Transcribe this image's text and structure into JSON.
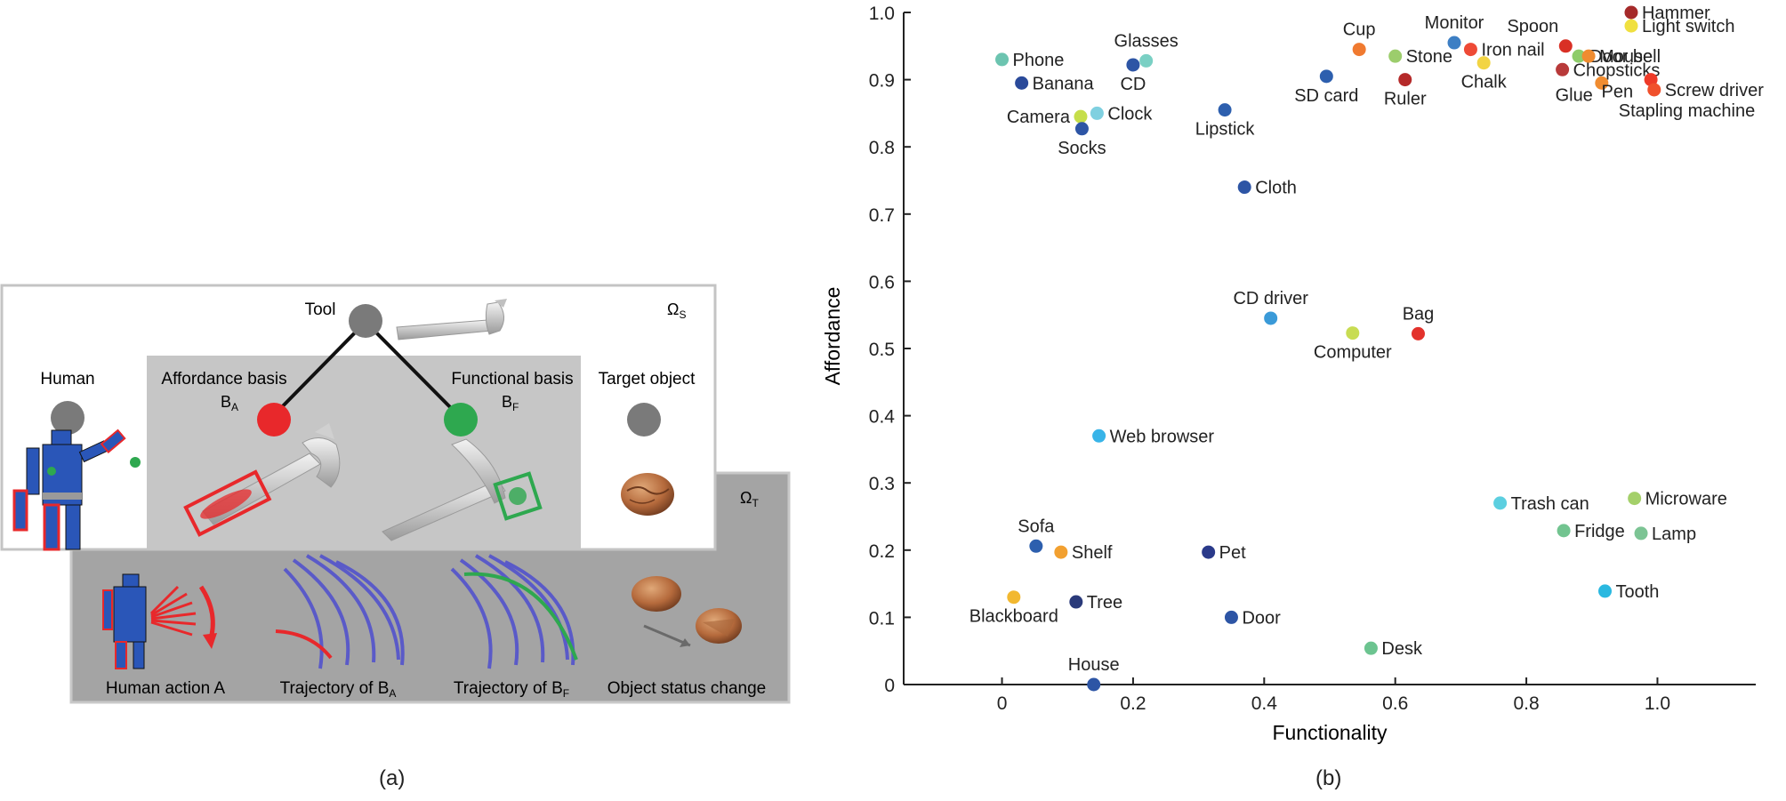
{
  "diagram": {
    "tool_label": "Tool",
    "omega_s": "Ω",
    "omega_s_sub": "S",
    "omega_t": "Ω",
    "omega_t_sub": "T",
    "human_label": "Human",
    "affordance_label": "Affordance basis",
    "ba_main": "B",
    "ba_sub": "A",
    "functional_label": "Functional basis",
    "bf_main": "B",
    "bf_sub": "F",
    "target_label": "Target object",
    "bottom_labels": {
      "human_action": "Human action A",
      "traj_a_main": "Trajectory of B",
      "traj_a_sub": "A",
      "traj_f_main": "Trajectory of B",
      "traj_f_sub": "F",
      "status": "Object status change"
    },
    "colors": {
      "affordance": "#e8282b",
      "functional": "#2ea84f",
      "node": "#7a7a7a"
    }
  },
  "captions": {
    "a": "(a)",
    "b": "(b)"
  },
  "chart_data": {
    "type": "scatter",
    "title": "",
    "xlabel": "Functionality",
    "ylabel": "Affordance",
    "xlim": [
      -0.15,
      1.15
    ],
    "ylim": [
      0,
      1.0
    ],
    "xticks": [
      "0",
      "0.2",
      "0.4",
      "0.6",
      "0.8",
      "1.0"
    ],
    "yticks": [
      "0",
      "0.1",
      "0.2",
      "0.3",
      "0.4",
      "0.5",
      "0.6",
      "0.7",
      "0.8",
      "0.9",
      "1.0"
    ],
    "grid": false,
    "points": [
      {
        "label": "Hammer",
        "x": 0.96,
        "y": 1.0,
        "color": "#a52a2a",
        "anchor": "right"
      },
      {
        "label": "Light switch",
        "x": 0.96,
        "y": 0.98,
        "color": "#f0e040",
        "anchor": "right"
      },
      {
        "label": "Monitor",
        "x": 0.69,
        "y": 0.955,
        "color": "#3d7fc4",
        "anchor": "above"
      },
      {
        "label": "Spoon",
        "x": 0.86,
        "y": 0.95,
        "color": "#d93025",
        "anchor": "aboveleft"
      },
      {
        "label": "Door bell",
        "x": 0.88,
        "y": 0.935,
        "color": "#8ecc6a",
        "anchor": "right"
      },
      {
        "label": "Mouse",
        "x": 0.895,
        "y": 0.935,
        "color": "#f08c30",
        "anchor": "right"
      },
      {
        "label": "Cup",
        "x": 0.545,
        "y": 0.945,
        "color": "#f07a30",
        "anchor": "above"
      },
      {
        "label": "Iron nail",
        "x": 0.715,
        "y": 0.945,
        "color": "#ee4a36",
        "anchor": "right"
      },
      {
        "label": "Stone",
        "x": 0.6,
        "y": 0.935,
        "color": "#9ccd6c",
        "anchor": "right"
      },
      {
        "label": "Chalk",
        "x": 0.735,
        "y": 0.925,
        "color": "#f2d444",
        "anchor": "below"
      },
      {
        "label": "Chopsticks",
        "x": 0.855,
        "y": 0.915,
        "color": "#b83a3a",
        "anchor": "right"
      },
      {
        "label": "SD card",
        "x": 0.495,
        "y": 0.905,
        "color": "#2d5fae",
        "anchor": "below"
      },
      {
        "label": "Ruler",
        "x": 0.615,
        "y": 0.9,
        "color": "#b52a2a",
        "anchor": "below"
      },
      {
        "label": "Glue",
        "x": 0.915,
        "y": 0.895,
        "color": "#f08c30",
        "anchor": "leftbelow"
      },
      {
        "label": "Pen",
        "x": 0.99,
        "y": 0.9,
        "color": "#ee3a28",
        "anchor": "leftbelow2"
      },
      {
        "label": "Screw driver",
        "x": 0.995,
        "y": 0.885,
        "color": "#f0502c",
        "anchor": "right"
      },
      {
        "label": "Stapling machine",
        "x": 0.995,
        "y": 0.885,
        "color": "#f0502c",
        "anchor": "belowright",
        "hidepoint": true
      },
      {
        "label": "Phone",
        "x": 0.0,
        "y": 0.93,
        "color": "#6cc4b0",
        "anchor": "right"
      },
      {
        "label": "Glasses",
        "x": 0.22,
        "y": 0.928,
        "color": "#7ad0c4",
        "anchor": "above"
      },
      {
        "label": "CD",
        "x": 0.2,
        "y": 0.922,
        "color": "#2d55a5",
        "anchor": "below"
      },
      {
        "label": "Banana",
        "x": 0.03,
        "y": 0.895,
        "color": "#2a4a9a",
        "anchor": "right"
      },
      {
        "label": "Lipstick",
        "x": 0.34,
        "y": 0.855,
        "color": "#2d5fae",
        "anchor": "below"
      },
      {
        "label": "Clock",
        "x": 0.145,
        "y": 0.85,
        "color": "#7fd0e0",
        "anchor": "right"
      },
      {
        "label": "Camera",
        "x": 0.12,
        "y": 0.845,
        "color": "#c6de4a",
        "anchor": "left"
      },
      {
        "label": "Socks",
        "x": 0.122,
        "y": 0.827,
        "color": "#2d55a5",
        "anchor": "below"
      },
      {
        "label": "Cloth",
        "x": 0.37,
        "y": 0.74,
        "color": "#2d55a5",
        "anchor": "right"
      },
      {
        "label": "CD driver",
        "x": 0.41,
        "y": 0.545,
        "color": "#3a9ad8",
        "anchor": "above"
      },
      {
        "label": "Computer",
        "x": 0.535,
        "y": 0.523,
        "color": "#c8dc52",
        "anchor": "below"
      },
      {
        "label": "Bag",
        "x": 0.635,
        "y": 0.522,
        "color": "#e3322c",
        "anchor": "above"
      },
      {
        "label": "Web browser",
        "x": 0.148,
        "y": 0.37,
        "color": "#38b4e8",
        "anchor": "right"
      },
      {
        "label": "Trash can",
        "x": 0.76,
        "y": 0.27,
        "color": "#5ccfe0",
        "anchor": "right"
      },
      {
        "label": "Microware",
        "x": 0.965,
        "y": 0.277,
        "color": "#a4d06a",
        "anchor": "right"
      },
      {
        "label": "Fridge",
        "x": 0.857,
        "y": 0.229,
        "color": "#72c490",
        "anchor": "right"
      },
      {
        "label": "Lamp",
        "x": 0.975,
        "y": 0.225,
        "color": "#7cc494",
        "anchor": "right"
      },
      {
        "label": "Sofa",
        "x": 0.052,
        "y": 0.206,
        "color": "#2d5fae",
        "anchor": "above"
      },
      {
        "label": "Shelf",
        "x": 0.09,
        "y": 0.197,
        "color": "#f2a030",
        "anchor": "right"
      },
      {
        "label": "Pet",
        "x": 0.315,
        "y": 0.197,
        "color": "#2a3a8a",
        "anchor": "right"
      },
      {
        "label": "Tooth",
        "x": 0.92,
        "y": 0.139,
        "color": "#2ab8e0",
        "anchor": "right"
      },
      {
        "label": "Blackboard",
        "x": 0.018,
        "y": 0.13,
        "color": "#f2b830",
        "anchor": "below"
      },
      {
        "label": "Tree",
        "x": 0.113,
        "y": 0.123,
        "color": "#2a3a7a",
        "anchor": "right"
      },
      {
        "label": "Door",
        "x": 0.35,
        "y": 0.1,
        "color": "#2d55a5",
        "anchor": "right"
      },
      {
        "label": "Desk",
        "x": 0.563,
        "y": 0.054,
        "color": "#6cc490",
        "anchor": "right"
      },
      {
        "label": "House",
        "x": 0.14,
        "y": 0.0,
        "color": "#2d55a5",
        "anchor": "above"
      }
    ]
  }
}
